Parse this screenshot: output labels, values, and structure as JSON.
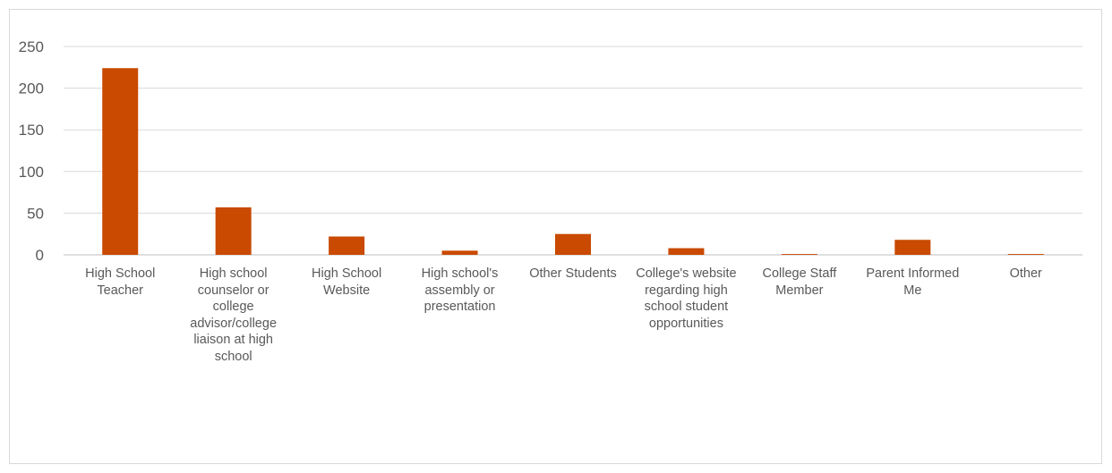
{
  "chart_data": {
    "type": "bar",
    "title": "",
    "xlabel": "",
    "ylabel": "",
    "ylim": [
      0,
      250
    ],
    "yticks": [
      0,
      50,
      100,
      150,
      200,
      250
    ],
    "grid": true,
    "legend": "none",
    "bar_color": "#c94a00",
    "categories": [
      "High School Teacher",
      "High school counselor or college advisor/college liaison at high school",
      "High School Website",
      "High school's assembly or presentation",
      "Other Students",
      "College's website regarding high school student opportunities",
      "College Staff Member",
      "Parent Informed Me",
      "Other"
    ],
    "values": [
      224,
      57,
      22,
      5,
      25,
      8,
      1,
      18,
      1
    ]
  }
}
